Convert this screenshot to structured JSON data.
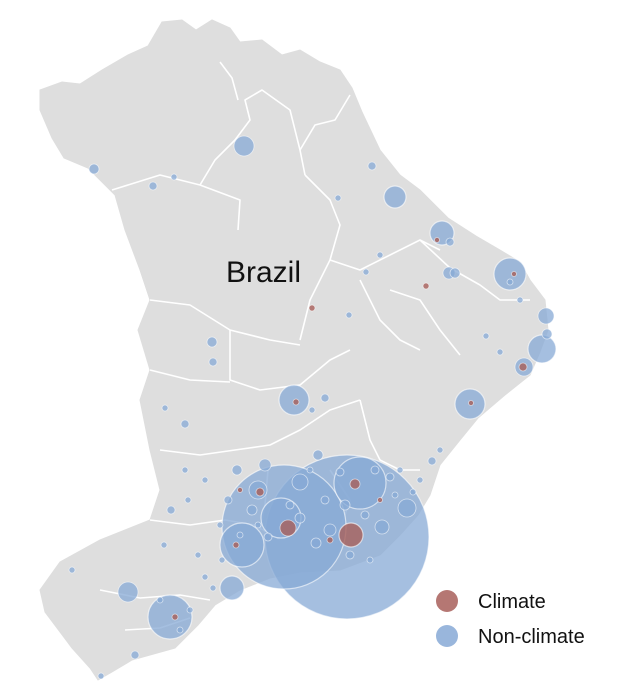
{
  "map": {
    "country_label": "Brazil",
    "land_color": "#dedede",
    "border_color": "#ffffff"
  },
  "legend": {
    "items": [
      {
        "label": "Climate",
        "color": "#a85f5a"
      },
      {
        "label": "Non-climate",
        "color": "#87a9d6"
      }
    ]
  }
}
